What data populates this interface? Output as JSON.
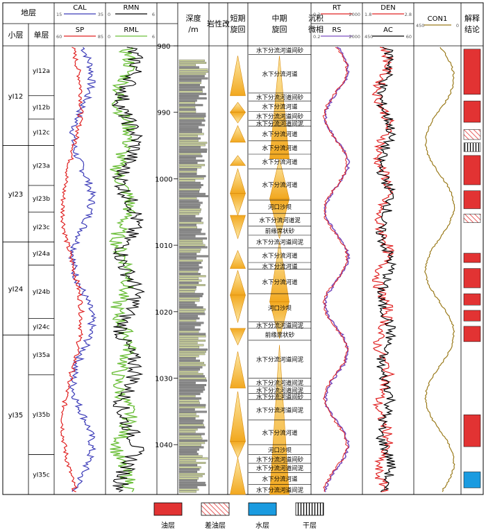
{
  "headers": {
    "strata": "地层",
    "sublayer": "小层",
    "unit": "单层",
    "depth": "深度/m",
    "lithology": "岩性改",
    "short_cycle": "短期旋回",
    "mid_cycle": "中期旋回",
    "facies": "沉积微相",
    "interpretation": "解释结论"
  },
  "tracks": {
    "cal": {
      "name": "CAL",
      "min": "15",
      "max": "35",
      "color": "#3a3ab8"
    },
    "sp": {
      "name": "SP",
      "min": "60",
      "max": "85",
      "color": "#e02020"
    },
    "rmn": {
      "name": "RMN",
      "min": "0",
      "max": "6",
      "color": "#000000"
    },
    "rml": {
      "name": "RML",
      "min": "0",
      "max": "6",
      "color": "#6cbf3a"
    },
    "rt": {
      "name": "RT",
      "min": "0.2",
      "max": "2000",
      "color": "#e02020"
    },
    "rs": {
      "name": "RS",
      "min": "0.2",
      "max": "2000",
      "color": "#7a4fbf"
    },
    "den": {
      "name": "DEN",
      "min": "1.8",
      "max": "2.8",
      "color": "#e02020"
    },
    "ac": {
      "name": "AC",
      "min": "450",
      "max": "60",
      "color": "#000000"
    },
    "con1": {
      "name": "CON1",
      "min": "450",
      "max": "0",
      "color": "#9a7a1a"
    }
  },
  "depth_ticks": [
    "980",
    "990",
    "1000",
    "1010",
    "1020",
    "1030",
    "1040"
  ],
  "sublayers": [
    {
      "name": "yⅠ12",
      "top": 980,
      "bottom": 995
    },
    {
      "name": "yⅠ23",
      "top": 995,
      "bottom": 1009.5
    },
    {
      "name": "yⅠ24",
      "top": 1009.5,
      "bottom": 1023.5
    },
    {
      "name": "yⅠ35",
      "top": 1023.5,
      "bottom": 1047.5
    }
  ],
  "units": [
    {
      "name": "yⅠ12a",
      "top": 980,
      "bottom": 987.5
    },
    {
      "name": "yⅠ12b",
      "top": 987.5,
      "bottom": 991
    },
    {
      "name": "yⅠ12c",
      "top": 991,
      "bottom": 995
    },
    {
      "name": "yⅠ23a",
      "top": 995,
      "bottom": 1001
    },
    {
      "name": "yⅠ23b",
      "top": 1001,
      "bottom": 1005
    },
    {
      "name": "yⅠ23c",
      "top": 1005,
      "bottom": 1009.5
    },
    {
      "name": "yⅠ24a",
      "top": 1009.5,
      "bottom": 1013
    },
    {
      "name": "yⅠ24b",
      "top": 1013,
      "bottom": 1021
    },
    {
      "name": "yⅠ24c",
      "top": 1021,
      "bottom": 1023.5
    },
    {
      "name": "yⅠ35a",
      "top": 1023.5,
      "bottom": 1029.5
    },
    {
      "name": "yⅠ35b",
      "top": 1029.5,
      "bottom": 1041.5
    },
    {
      "name": "yⅠ35c",
      "top": 1041.5,
      "bottom": 1047.5
    }
  ],
  "facies": [
    {
      "label": "水下分流河道间砂",
      "top": 980,
      "bottom": 981.3
    },
    {
      "label": "水下分流河道",
      "top": 981.3,
      "bottom": 987.1
    },
    {
      "label": "水下分流河道间砂",
      "top": 987.1,
      "bottom": 988.3
    },
    {
      "label": "水下分流河道",
      "top": 988.3,
      "bottom": 989.9
    },
    {
      "label": "水下分流河道间砂",
      "top": 989.9,
      "bottom": 991.2
    },
    {
      "label": "水下分流河道间泥",
      "top": 991.2,
      "bottom": 992.1
    },
    {
      "label": "水下分流河道",
      "top": 992.1,
      "bottom": 994.3
    },
    {
      "label": "水下分流河道",
      "top": 994.3,
      "bottom": 996.3
    },
    {
      "label": "水下分流河道",
      "top": 996.3,
      "bottom": 998.5
    },
    {
      "label": "水下分流河道",
      "top": 998.5,
      "bottom": 1003.2
    },
    {
      "label": "河口沙坝",
      "top": 1003.2,
      "bottom": 1005.2
    },
    {
      "label": "水下分流河道泥",
      "top": 1005.2,
      "bottom": 1007.1
    },
    {
      "label": "前缘席状砂",
      "top": 1007.1,
      "bottom": 1008.5
    },
    {
      "label": "水下分流河道间泥",
      "top": 1008.5,
      "bottom": 1010.4
    },
    {
      "label": "水下分流河道",
      "top": 1010.4,
      "bottom": 1012.6
    },
    {
      "label": "水下分流河道",
      "top": 1012.6,
      "bottom": 1013.6
    },
    {
      "label": "水下分流河道",
      "top": 1013.6,
      "bottom": 1017.3
    },
    {
      "label": "河口沙坝",
      "top": 1017.3,
      "bottom": 1021.5
    },
    {
      "label": "水下分流河道间泥",
      "top": 1021.5,
      "bottom": 1022.5
    },
    {
      "label": "前缘席状砂",
      "top": 1022.5,
      "bottom": 1024.3
    },
    {
      "label": "水下分流河道间泥",
      "top": 1024.3,
      "bottom": 1030.0
    },
    {
      "label": "水下分流河道间泥",
      "top": 1030.0,
      "bottom": 1031.2
    },
    {
      "label": "水下分流河道间泥",
      "top": 1031.2,
      "bottom": 1032.3
    },
    {
      "label": "水下分流河道间砂",
      "top": 1032.3,
      "bottom": 1033.2
    },
    {
      "label": "水下分流河道间泥",
      "top": 1033.2,
      "bottom": 1036.3
    },
    {
      "label": "水下分流河道",
      "top": 1036.3,
      "bottom": 1040.0
    },
    {
      "label": "河口沙坝",
      "top": 1040.0,
      "bottom": 1041.5
    },
    {
      "label": "水下分流河道间砂",
      "top": 1041.5,
      "bottom": 1042.8
    },
    {
      "label": "水下分流河道间泥",
      "top": 1042.8,
      "bottom": 1044.2
    },
    {
      "label": "水下分流河道",
      "top": 1044.2,
      "bottom": 1046.0
    },
    {
      "label": "水下分流河道间泥",
      "top": 1046.0,
      "bottom": 1047.5
    }
  ],
  "short_cycles": [
    {
      "top": 981.5,
      "bottom": 987.5,
      "dir": "up"
    },
    {
      "top": 988.5,
      "bottom": 990.0,
      "dir": "up"
    },
    {
      "top": 990.0,
      "bottom": 991.6,
      "dir": "down"
    },
    {
      "top": 992.0,
      "bottom": 994.5,
      "dir": "up"
    },
    {
      "top": 996.5,
      "bottom": 998.0,
      "dir": "up"
    },
    {
      "top": 998.5,
      "bottom": 1002.2,
      "dir": "up"
    },
    {
      "top": 1002.2,
      "bottom": 1005.5,
      "dir": "down"
    },
    {
      "top": 1005.5,
      "bottom": 1009.0,
      "dir": "down"
    },
    {
      "top": 1010.8,
      "bottom": 1013.5,
      "dir": "up"
    },
    {
      "top": 1013.8,
      "bottom": 1017.5,
      "dir": "up"
    },
    {
      "top": 1017.5,
      "bottom": 1021.6,
      "dir": "down"
    },
    {
      "top": 1022.5,
      "bottom": 1025.0,
      "dir": "down"
    },
    {
      "top": 1026.0,
      "bottom": 1031.5,
      "dir": "up"
    },
    {
      "top": 1032.0,
      "bottom": 1039.5,
      "dir": "up"
    },
    {
      "top": 1039.5,
      "bottom": 1042.0,
      "dir": "down"
    },
    {
      "top": 1042.0,
      "bottom": 1047.5,
      "dir": "up"
    }
  ],
  "mid_cycles": [
    {
      "top": 981.5,
      "bottom": 997.0,
      "dir": "up"
    },
    {
      "top": 997.0,
      "bottom": 1003.0,
      "dir": "up"
    },
    {
      "top": 1003.0,
      "bottom": 1009.0,
      "dir": "down"
    },
    {
      "top": 1009.5,
      "bottom": 1018.5,
      "dir": "up"
    },
    {
      "top": 1018.5,
      "bottom": 1024.0,
      "dir": "down"
    },
    {
      "top": 1025.0,
      "bottom": 1047.5,
      "dir": "up"
    }
  ],
  "interpretation_blocks": [
    {
      "type": "oil",
      "top": 980.5,
      "bottom": 987.3
    },
    {
      "type": "oil",
      "top": 988.3,
      "bottom": 991.5
    },
    {
      "type": "poor-oil",
      "top": 992.6,
      "bottom": 994.1
    },
    {
      "type": "dry",
      "top": 994.6,
      "bottom": 995.9
    },
    {
      "type": "oil",
      "top": 996.5,
      "bottom": 1000.9
    },
    {
      "type": "oil",
      "top": 1001.8,
      "bottom": 1004.5
    },
    {
      "type": "poor-oil",
      "top": 1005.3,
      "bottom": 1006.6
    },
    {
      "type": "oil",
      "top": 1011.2,
      "bottom": 1012.6
    },
    {
      "type": "oil",
      "top": 1013.5,
      "bottom": 1016.4
    },
    {
      "type": "oil",
      "top": 1017.3,
      "bottom": 1019.0
    },
    {
      "type": "oil",
      "top": 1019.8,
      "bottom": 1021.4
    },
    {
      "type": "oil",
      "top": 1022.2,
      "bottom": 1024.5
    },
    {
      "type": "oil",
      "top": 1035.5,
      "bottom": 1040.3
    },
    {
      "type": "water",
      "top": 1044.1,
      "bottom": 1046.5
    }
  ],
  "legend": [
    {
      "type": "oil",
      "label": "油层"
    },
    {
      "type": "poor-oil",
      "label": "差油层"
    },
    {
      "type": "water",
      "label": "水层"
    },
    {
      "type": "dry",
      "label": "干层"
    }
  ],
  "colors": {
    "oil": "#e23333",
    "water": "#1a9be0",
    "cycle": "#f2b233"
  }
}
